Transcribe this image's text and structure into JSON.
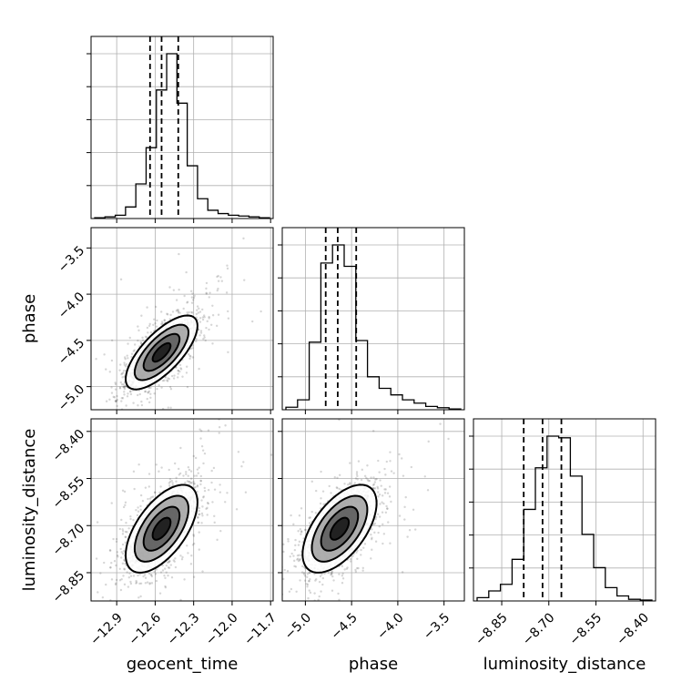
{
  "chart_data": {
    "type": "corner",
    "parameters": [
      {
        "key": "geocent_time",
        "label": "geocent_time",
        "ticks": [
          -12.9,
          -12.6,
          -12.3,
          -12.0,
          -11.7
        ],
        "tick_labels": [
          "−12.9",
          "−12.6",
          "−12.3",
          "−12.0",
          "−11.7"
        ],
        "range": [
          -13.1,
          -11.68
        ],
        "quantiles": [
          -12.64,
          -12.55,
          -12.42
        ]
      },
      {
        "key": "phase",
        "label": "phase",
        "ticks": [
          -5.0,
          -4.5,
          -4.0,
          -3.5
        ],
        "tick_labels": [
          "−5.0",
          "−4.5",
          "−4.0",
          "−3.5"
        ],
        "range": [
          -5.25,
          -3.28
        ],
        "quantiles": [
          -4.78,
          -4.65,
          -4.45
        ]
      },
      {
        "key": "luminosity_distance",
        "label": "luminosity_distance",
        "ticks": [
          -8.85,
          -8.7,
          -8.55,
          -8.4
        ],
        "tick_labels": [
          "−8.85",
          "−8.70",
          "−8.55",
          "−8.40"
        ],
        "range": [
          -8.94,
          -8.36
        ],
        "quantiles": [
          -8.78,
          -8.72,
          -8.66
        ]
      }
    ],
    "histograms": [
      {
        "parameter": "geocent_time",
        "counts": [
          0.5,
          1,
          2,
          7,
          21,
          43,
          78,
          100,
          70,
          32,
          12,
          5,
          3,
          2,
          1.5,
          1,
          0.5
        ]
      },
      {
        "parameter": "phase",
        "counts": [
          1.5,
          6,
          41,
          89,
          100,
          87,
          42,
          20,
          13,
          9,
          6,
          4,
          2,
          1.2,
          0.5
        ]
      },
      {
        "parameter": "luminosity_distance",
        "counts": [
          2,
          6,
          10,
          25,
          55,
          80,
          99,
          98,
          75,
          40,
          20,
          8,
          3,
          1,
          0.5
        ]
      }
    ],
    "joint": [
      {
        "x": "geocent_time",
        "y": "phase",
        "mean": [
          -12.55,
          -4.63
        ],
        "std": [
          0.14,
          0.2
        ],
        "corr": 0.72
      },
      {
        "x": "geocent_time",
        "y": "luminosity_distance",
        "mean": [
          -12.55,
          -8.71
        ],
        "std": [
          0.14,
          0.07
        ],
        "corr": 0.6
      },
      {
        "x": "phase",
        "y": "luminosity_distance",
        "mean": [
          -4.63,
          -8.71
        ],
        "std": [
          0.2,
          0.07
        ],
        "corr": 0.58
      }
    ],
    "contour_levels_sigma": [
      0.5,
      1.0,
      1.5,
      2.0
    ],
    "grid": true
  }
}
